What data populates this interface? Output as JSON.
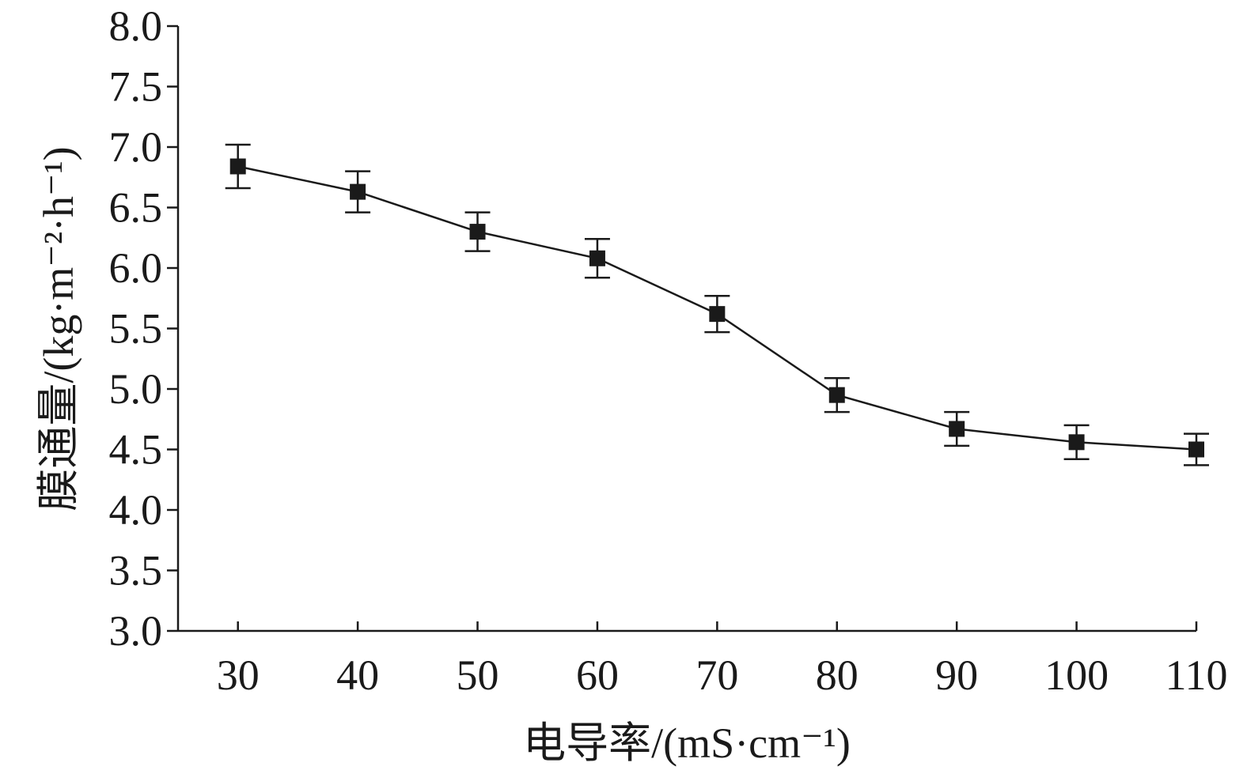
{
  "chart_data": {
    "type": "line",
    "xlabel": "电导率/(mS·cm⁻¹)",
    "ylabel": "膜通量/(kg·m⁻²·h⁻¹)",
    "xlim": [
      25,
      110
    ],
    "ylim": [
      3.0,
      8.0
    ],
    "x_ticks": [
      "30",
      "40",
      "50",
      "60",
      "70",
      "80",
      "90",
      "100",
      "110"
    ],
    "y_ticks": [
      "3.0",
      "3.5",
      "4.0",
      "4.5",
      "5.0",
      "5.5",
      "6.0",
      "6.5",
      "7.0",
      "7.5",
      "8.0"
    ],
    "grid": false,
    "marker": "square",
    "series": [
      {
        "x": [
          30,
          40,
          50,
          60,
          70,
          80,
          90,
          100,
          110
        ],
        "y": [
          6.84,
          6.63,
          6.3,
          6.08,
          5.62,
          4.95,
          4.67,
          4.56,
          4.5
        ],
        "error": [
          0.18,
          0.17,
          0.16,
          0.16,
          0.15,
          0.14,
          0.14,
          0.14,
          0.13
        ]
      }
    ]
  }
}
